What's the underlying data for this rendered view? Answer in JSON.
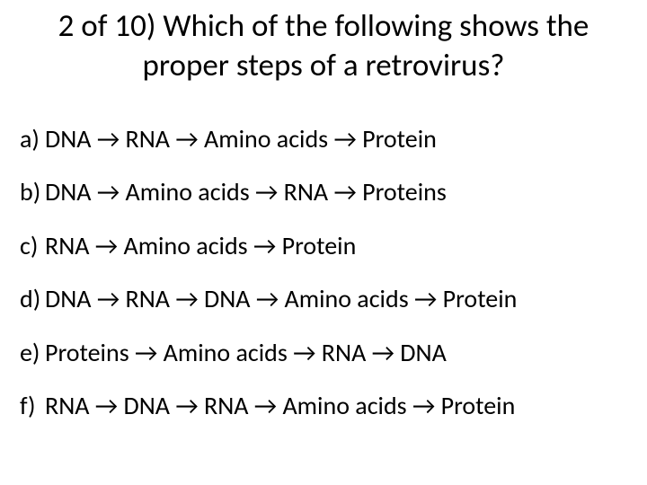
{
  "title": "2 of 10) Which of the following shows the proper steps of a retrovirus?",
  "arrow": "→",
  "options": [
    {
      "label": "a)",
      "text": "DNA → RNA → Amino acids → Protein"
    },
    {
      "label": "b)",
      "text": "DNA → Amino acids → RNA → Proteins"
    },
    {
      "label": "c)",
      "text": "RNA → Amino acids → Protein"
    },
    {
      "label": "d)",
      "text": "DNA → RNA → DNA → Amino acids → Protein"
    },
    {
      "label": "e)",
      "text": "Proteins → Amino acids → RNA → DNA"
    },
    {
      "label": "f)",
      "text": "RNA → DNA → RNA → Amino acids → Protein"
    }
  ],
  "styles": {
    "background_color": "#ffffff",
    "text_color": "#000000",
    "title_fontsize": 35,
    "option_fontsize": 28,
    "font_family": "Calibri, Arial, sans-serif",
    "slide_width": 720,
    "slide_height": 540
  }
}
